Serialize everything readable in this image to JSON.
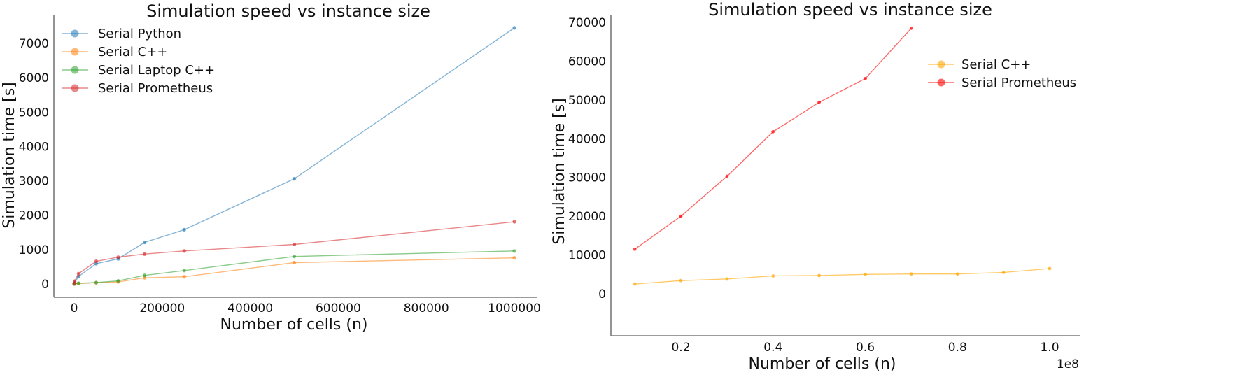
{
  "chart_data": [
    {
      "type": "line",
      "title": "Simulation speed vs instance size",
      "xlabel": "Number of cells (n)",
      "ylabel": "Simulation time [s]",
      "xlim": [
        -50000,
        1050000
      ],
      "ylim": [
        -380,
        7700
      ],
      "xticks": [
        0,
        200000,
        400000,
        600000,
        800000,
        1000000
      ],
      "xtick_labels": [
        "0",
        "200000",
        "400000",
        "600000",
        "800000",
        "1000000"
      ],
      "yticks": [
        0,
        1000,
        2000,
        3000,
        4000,
        5000,
        6000,
        7000
      ],
      "ytick_labels": [
        "0",
        "1000",
        "2000",
        "3000",
        "4000",
        "5000",
        "6000",
        "7000"
      ],
      "grid": false,
      "legend_position": "upper left",
      "series": [
        {
          "name": "Serial Python",
          "color": "#1f77b4",
          "x": [
            100,
            1000,
            10000,
            50000,
            100000,
            160000,
            250000,
            500000,
            1000000
          ],
          "y": [
            5,
            40,
            220,
            590,
            730,
            1210,
            1580,
            3060,
            7450
          ]
        },
        {
          "name": "Serial C++",
          "color": "#ff7f0e",
          "x": [
            100,
            1000,
            10000,
            50000,
            100000,
            160000,
            250000,
            500000,
            1000000
          ],
          "y": [
            2,
            5,
            15,
            35,
            60,
            180,
            210,
            620,
            760
          ]
        },
        {
          "name": "Serial Laptop C++",
          "color": "#2ca02c",
          "x": [
            100,
            1000,
            10000,
            50000,
            100000,
            160000,
            250000,
            500000,
            1000000
          ],
          "y": [
            2,
            6,
            20,
            40,
            90,
            250,
            390,
            800,
            960
          ]
        },
        {
          "name": "Serial Prometheus",
          "color": "#d62728",
          "x": [
            100,
            1000,
            10000,
            50000,
            100000,
            160000,
            250000,
            500000,
            1000000
          ],
          "y": [
            10,
            80,
            300,
            660,
            780,
            870,
            960,
            1150,
            1810
          ]
        }
      ]
    },
    {
      "type": "line",
      "title": "Simulation speed vs instance size",
      "xlabel": "Number of cells (n)",
      "ylabel": "Simulation time [s]",
      "x_offset_label": "1e8",
      "xlim": [
        0.055,
        1.045
      ],
      "ylim": [
        -1000,
        71500
      ],
      "xticks": [
        0.2,
        0.4,
        0.6,
        0.8,
        1.0
      ],
      "xtick_labels": [
        "0.2",
        "0.4",
        "0.6",
        "0.8",
        "1.0"
      ],
      "yticks": [
        0,
        10000,
        20000,
        30000,
        40000,
        50000,
        60000,
        70000
      ],
      "ytick_labels": [
        "0",
        "10000",
        "20000",
        "30000",
        "40000",
        "50000",
        "60000",
        "70000"
      ],
      "grid": false,
      "legend_position": "upper right",
      "series": [
        {
          "name": "Serial C++",
          "color": "#ffa500",
          "x": [
            0.1,
            0.2,
            0.3,
            0.4,
            0.5,
            0.6,
            0.7,
            0.8,
            0.9,
            1.0
          ],
          "y": [
            2500,
            3400,
            3800,
            4600,
            4700,
            5000,
            5100,
            5100,
            5500,
            6500
          ]
        },
        {
          "name": "Serial Prometheus",
          "color": "#ff0000",
          "x": [
            0.1,
            0.2,
            0.3,
            0.4,
            0.5,
            0.6,
            0.7
          ],
          "y": [
            11500,
            20000,
            30300,
            41800,
            49400,
            55500,
            68500
          ]
        }
      ]
    }
  ]
}
